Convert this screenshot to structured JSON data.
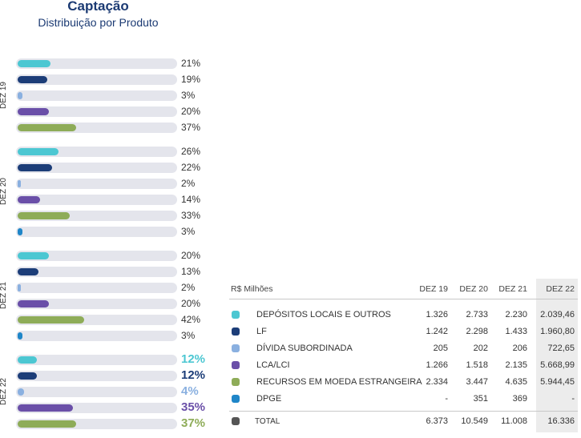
{
  "header": {
    "title": "Captação",
    "subtitle": "Distribuição por Produto"
  },
  "colors": {
    "depositos": "#4cc7d2",
    "lf": "#1c3d78",
    "divida": "#8ab0e0",
    "lca": "#6a4fa8",
    "recursos": "#8eac58",
    "dpge": "#1f86c8",
    "total": "#555555"
  },
  "chart_data": {
    "type": "bar",
    "orientation": "horizontal",
    "xlim": [
      0,
      100
    ],
    "groups": [
      {
        "label": "DEZ 19",
        "bars": [
          {
            "product": "depositos",
            "value": 21,
            "label": "21%"
          },
          {
            "product": "lf",
            "value": 19,
            "label": "19%"
          },
          {
            "product": "divida",
            "value": 3,
            "label": "3%"
          },
          {
            "product": "lca",
            "value": 20,
            "label": "20%"
          },
          {
            "product": "recursos",
            "value": 37,
            "label": "37%"
          }
        ]
      },
      {
        "label": "DEZ 20",
        "bars": [
          {
            "product": "depositos",
            "value": 26,
            "label": "26%"
          },
          {
            "product": "lf",
            "value": 22,
            "label": "22%"
          },
          {
            "product": "divida",
            "value": 2,
            "label": "2%"
          },
          {
            "product": "lca",
            "value": 14,
            "label": "14%"
          },
          {
            "product": "recursos",
            "value": 33,
            "label": "33%"
          },
          {
            "product": "dpge",
            "value": 3,
            "label": "3%"
          }
        ]
      },
      {
        "label": "DEZ 21",
        "bars": [
          {
            "product": "depositos",
            "value": 20,
            "label": "20%"
          },
          {
            "product": "lf",
            "value": 13,
            "label": "13%"
          },
          {
            "product": "divida",
            "value": 2,
            "label": "2%"
          },
          {
            "product": "lca",
            "value": 20,
            "label": "20%"
          },
          {
            "product": "recursos",
            "value": 42,
            "label": "42%"
          },
          {
            "product": "dpge",
            "value": 3,
            "label": "3%"
          }
        ]
      },
      {
        "label": "DEZ 22",
        "bars": [
          {
            "product": "depositos",
            "value": 12,
            "label": "12%"
          },
          {
            "product": "lf",
            "value": 12,
            "label": "12%"
          },
          {
            "product": "divida",
            "value": 4,
            "label": "4%"
          },
          {
            "product": "lca",
            "value": 35,
            "label": "35%"
          },
          {
            "product": "recursos",
            "value": 37,
            "label": "37%"
          }
        ]
      }
    ]
  },
  "table": {
    "unit": "R$ Milhões",
    "columns": [
      "DEZ 19",
      "DEZ 20",
      "DEZ 21",
      "DEZ 22"
    ],
    "rows": [
      {
        "product": "depositos",
        "label": "DEPÓSITOS LOCAIS E OUTROS",
        "values": [
          "1.326",
          "2.733",
          "2.230",
          "2.039,46"
        ]
      },
      {
        "product": "lf",
        "label": "LF",
        "values": [
          "1.242",
          "2.298",
          "1.433",
          "1.960,80"
        ]
      },
      {
        "product": "divida",
        "label": "DÍVIDA SUBORDINADA",
        "values": [
          "205",
          "202",
          "206",
          "722,65"
        ]
      },
      {
        "product": "lca",
        "label": "LCA/LCI",
        "values": [
          "1.266",
          "1.518",
          "2.135",
          "5.668,99"
        ]
      },
      {
        "product": "recursos",
        "label": "RECURSOS EM MOEDA ESTRANGEIRA",
        "values": [
          "2.334",
          "3.447",
          "4.635",
          "5.944,45"
        ]
      },
      {
        "product": "dpge",
        "label": "DPGE",
        "values": [
          "-",
          "351",
          "369",
          "-"
        ]
      }
    ],
    "total": {
      "product": "total",
      "label": "TOTAL",
      "values": [
        "6.373",
        "10.549",
        "11.008",
        "16.336"
      ]
    }
  }
}
